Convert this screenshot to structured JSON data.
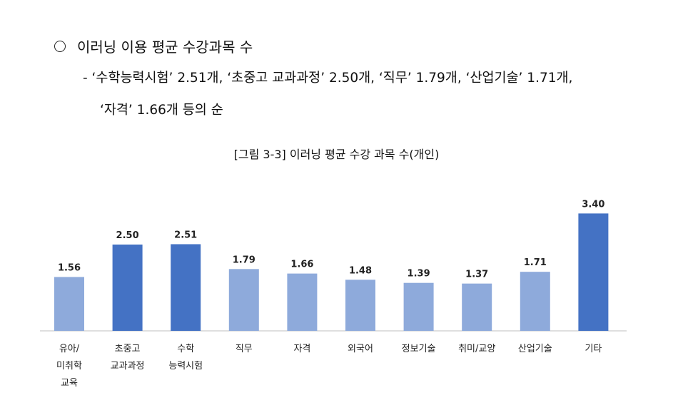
{
  "heading": {
    "bullet": "○",
    "text": "이러닝 이용 평균 수강과목 수"
  },
  "summary": {
    "line1": "- ‘수학능력시험’ 2.51개, ‘초중고 교과과정’ 2.50개, ‘직무’ 1.79개, ‘산업기술’ 1.71개,",
    "line2": "‘자격’ 1.66개 등의 순"
  },
  "chart_data": {
    "type": "bar",
    "title": "[그림 3-3] 이러닝 평균 수강 과목 수(개인)",
    "categories": [
      [
        "유아/",
        "미취학",
        "교육"
      ],
      [
        "초중고",
        "교과과정"
      ],
      [
        "수학",
        "능력시험"
      ],
      [
        "직무"
      ],
      [
        "자격"
      ],
      [
        "외국어"
      ],
      [
        "정보기술"
      ],
      [
        "취미/교양"
      ],
      [
        "산업기술"
      ],
      [
        "기타"
      ]
    ],
    "values": [
      1.56,
      2.5,
      2.51,
      1.79,
      1.66,
      1.48,
      1.39,
      1.37,
      1.71,
      3.4
    ],
    "value_labels": [
      "1.56",
      "2.50",
      "2.51",
      "1.79",
      "1.66",
      "1.48",
      "1.39",
      "1.37",
      "1.71",
      "3.40"
    ],
    "highlight": [
      false,
      true,
      true,
      false,
      false,
      false,
      false,
      false,
      false,
      true
    ],
    "colors": {
      "normal": "#8eaadb",
      "highlight": "#4472c4",
      "axis": "#bfbfbf"
    },
    "ylim": [
      0,
      3.8
    ],
    "xlabel": "",
    "ylabel": "",
    "grid": false,
    "legend": "none"
  }
}
